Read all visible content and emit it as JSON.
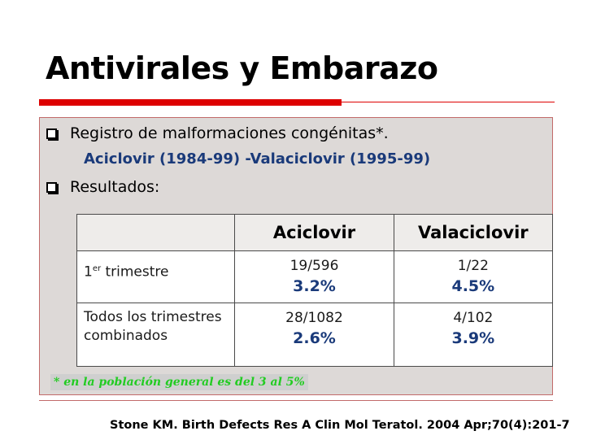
{
  "slide": {
    "title": "Antivirales y Embarazo",
    "bullets": [
      {
        "text": "Registro de malformaciones congénitas*."
      },
      {
        "text": "Resultados:"
      }
    ],
    "subline": "Aciclovir (1984-99) -Valaciclovir (1995-99)",
    "footnote": "* en la población general es del 3 al 5%",
    "citation": "Stone KM. Birth Defects Res A Clin Mol Teratol. 2004 Apr;70(4):201-7",
    "colors": {
      "accent_red": "#dd0000",
      "subline_blue": "#1a3a7a",
      "footnote_green": "#22cc22",
      "content_bg": "#ddd9d7"
    }
  },
  "table": {
    "headers": [
      "",
      "Aciclovir",
      "Valaciclovir"
    ],
    "rows": [
      {
        "label_main": "1",
        "label_sup": "er",
        "label_rest": " trimestre",
        "aciclovir_frac": "19/596",
        "aciclovir_pct": "3.2%",
        "valaciclovir_frac": "1/22",
        "valaciclovir_pct": "4.5%"
      },
      {
        "label": "Todos los trimestres combinados",
        "aciclovir_frac": "28/1082",
        "aciclovir_pct": "2.6%",
        "valaciclovir_frac": "4/102",
        "valaciclovir_pct": "3.9%"
      }
    ]
  }
}
